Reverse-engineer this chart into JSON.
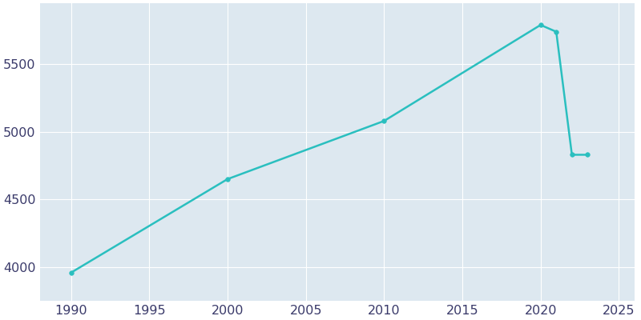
{
  "years": [
    1990,
    2000,
    2010,
    2020,
    2021,
    2022,
    2023
  ],
  "population": [
    3958,
    4650,
    5080,
    5790,
    5740,
    4830,
    4830
  ],
  "line_color": "#2abfbf",
  "marker_color": "#2abfbf",
  "axes_background_color": "#dde8f0",
  "figure_background_color": "#ffffff",
  "grid_color": "#ffffff",
  "xlim": [
    1988,
    2026
  ],
  "ylim": [
    3750,
    5950
  ],
  "xticks": [
    1990,
    1995,
    2000,
    2005,
    2010,
    2015,
    2020,
    2025
  ],
  "yticks": [
    4000,
    4500,
    5000,
    5500
  ],
  "tick_label_color": "#3a3a6a",
  "tick_label_fontsize": 11.5,
  "linewidth": 1.8,
  "markersize": 4
}
